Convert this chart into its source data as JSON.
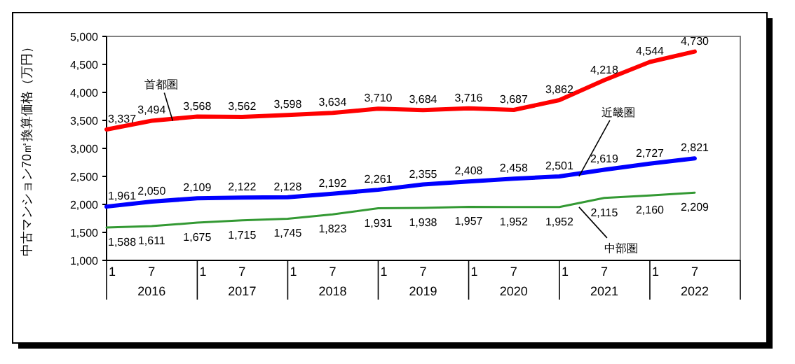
{
  "chart_data": {
    "type": "line",
    "ylabel": "中古マンション70㎡換算価格（万円）",
    "x": [
      "2016-01",
      "2016-07",
      "2017-01",
      "2017-07",
      "2018-01",
      "2018-07",
      "2019-01",
      "2019-07",
      "2020-01",
      "2020-07",
      "2021-01",
      "2021-07",
      "2022-01",
      "2022-07"
    ],
    "xlim": [
      "2016-01",
      "2023-01"
    ],
    "xticks": [
      {
        "value": "2016-01",
        "label": "1"
      },
      {
        "value": "2016-07",
        "label": "7"
      },
      {
        "value": "2017-01",
        "label": "1"
      },
      {
        "value": "2017-07",
        "label": "7"
      },
      {
        "value": "2018-01",
        "label": "1"
      },
      {
        "value": "2018-07",
        "label": "7"
      },
      {
        "value": "2019-01",
        "label": "1"
      },
      {
        "value": "2019-07",
        "label": "7"
      },
      {
        "value": "2020-01",
        "label": "1"
      },
      {
        "value": "2020-07",
        "label": "7"
      },
      {
        "value": "2021-01",
        "label": "1"
      },
      {
        "value": "2021-07",
        "label": "7"
      },
      {
        "value": "2022-01",
        "label": "1"
      },
      {
        "value": "2022-07",
        "label": "7"
      }
    ],
    "ylim": [
      1000,
      5000
    ],
    "yticks": [
      {
        "value": 1000,
        "label": "1,000"
      },
      {
        "value": 1500,
        "label": "1,500"
      },
      {
        "value": 2000,
        "label": "2,000"
      },
      {
        "value": 2500,
        "label": "2,500"
      },
      {
        "value": 3000,
        "label": "3,000"
      },
      {
        "value": 3500,
        "label": "3,500"
      },
      {
        "value": 4000,
        "label": "4,000"
      },
      {
        "value": 4500,
        "label": "4,500"
      },
      {
        "value": 5000,
        "label": "5,000"
      }
    ],
    "series": [
      {
        "name": "首都圏",
        "color": "#ff0000",
        "values": [
          3337,
          3494,
          3568,
          3562,
          3598,
          3634,
          3710,
          3684,
          3716,
          3687,
          3862,
          4218,
          4544,
          4730
        ],
        "value_labels": [
          "3,337",
          "3,494",
          "3,568",
          "3,562",
          "3,598",
          "3,634",
          "3,710",
          "3,684",
          "3,716",
          "3,687",
          "3,862",
          "4,218",
          "4,544",
          "4,730"
        ]
      },
      {
        "name": "近畿圏",
        "color": "#0000ff",
        "values": [
          1961,
          2050,
          2109,
          2122,
          2128,
          2192,
          2261,
          2355,
          2408,
          2458,
          2501,
          2619,
          2727,
          2821
        ],
        "value_labels": [
          "1,961",
          "2,050",
          "2,109",
          "2,122",
          "2,128",
          "2,192",
          "2,261",
          "2,355",
          "2,408",
          "2,458",
          "2,501",
          "2,619",
          "2,727",
          "2,821"
        ]
      },
      {
        "name": "中部圏",
        "color": "#339933",
        "values": [
          1588,
          1611,
          1675,
          1715,
          1745,
          1823,
          1931,
          1938,
          1957,
          1952,
          1952,
          2115,
          2160,
          2209
        ],
        "value_labels": [
          "1,588",
          "1,611",
          "1,675",
          "1,715",
          "1,745",
          "1,823",
          "1,931",
          "1,938",
          "1,957",
          "1,952",
          "1,952",
          "2,115",
          "2,160",
          "2,209"
        ]
      }
    ],
    "annotations": [
      "2016",
      "2017",
      "2018",
      "2019",
      "2020",
      "2021",
      "2022"
    ],
    "grid": false,
    "marker": "none",
    "line_style": "solid"
  }
}
